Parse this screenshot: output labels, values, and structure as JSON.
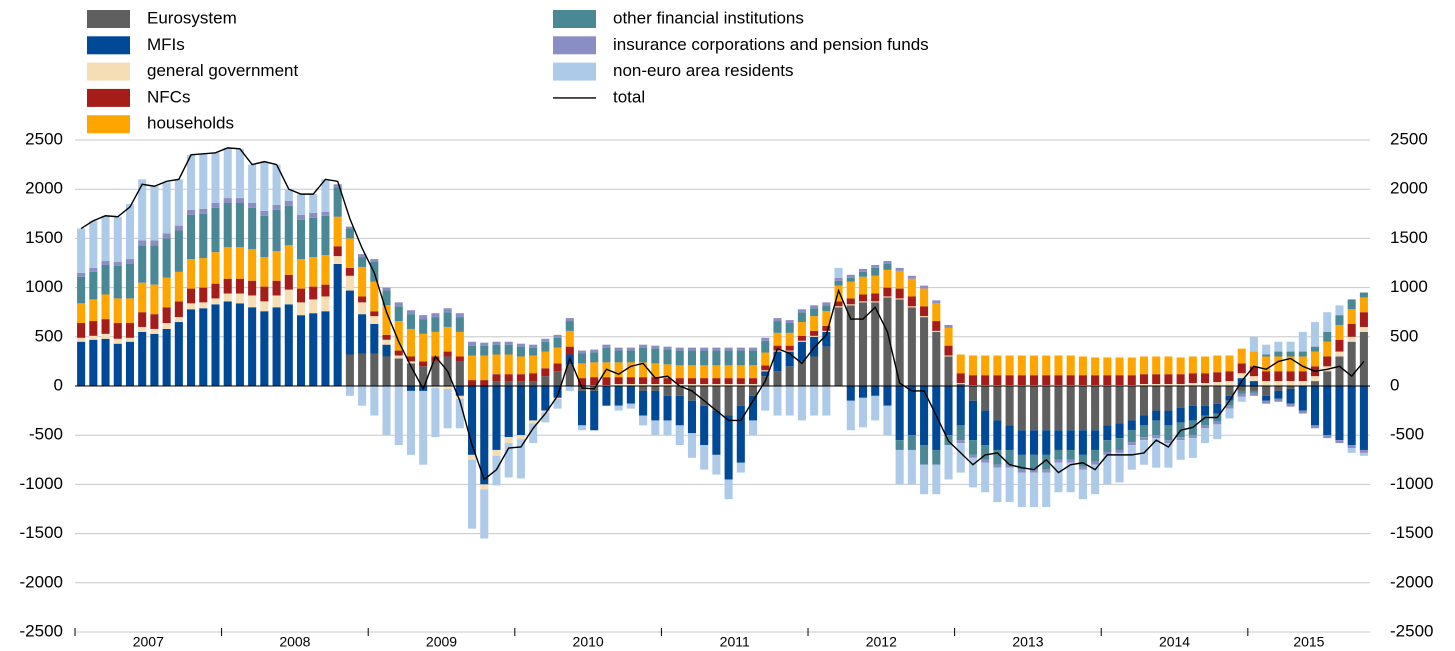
{
  "chart_data": {
    "type": "bar",
    "stacked": true,
    "legend": "top-left",
    "grid": true,
    "categories": [
      "2007",
      null,
      null,
      null,
      null,
      null,
      null,
      null,
      null,
      null,
      null,
      null,
      "2008",
      null,
      null,
      null,
      null,
      null,
      null,
      null,
      null,
      null,
      null,
      null,
      "2009",
      null,
      null,
      null,
      null,
      null,
      null,
      null,
      null,
      null,
      null,
      null,
      "2010",
      null,
      null,
      null,
      null,
      null,
      null,
      null,
      null,
      null,
      null,
      null,
      "2011",
      null,
      null,
      null,
      null,
      null,
      null,
      null,
      null,
      null,
      null,
      null,
      "2012",
      null,
      null,
      null,
      null,
      null,
      null,
      null,
      null,
      null,
      null,
      null,
      "2013",
      null,
      null,
      null,
      null,
      null,
      null,
      null,
      null,
      null,
      null,
      null,
      "2014",
      null,
      null,
      null,
      null,
      null,
      null,
      null,
      null,
      null,
      null,
      null,
      "2015",
      null,
      null,
      null,
      null,
      null,
      null,
      null,
      null,
      null
    ],
    "ylim": [
      -2500,
      2500
    ],
    "yticks": [
      -2500,
      -2000,
      -1500,
      -1000,
      -500,
      0,
      500,
      1000,
      1500,
      2000,
      2500
    ],
    "series": [
      {
        "name": "Eurosystem",
        "color": "#5f5f5f",
        "values": [
          0,
          0,
          0,
          0,
          0,
          0,
          0,
          0,
          0,
          0,
          0,
          0,
          0,
          0,
          0,
          0,
          0,
          0,
          0,
          0,
          0,
          0,
          320,
          330,
          330,
          300,
          280,
          230,
          200,
          250,
          300,
          250,
          0,
          0,
          50,
          50,
          50,
          50,
          100,
          150,
          220,
          -50,
          -50,
          0,
          0,
          0,
          -50,
          -50,
          -100,
          -100,
          -150,
          -200,
          -250,
          -300,
          -200,
          -100,
          100,
          150,
          200,
          250,
          300,
          400,
          800,
          820,
          850,
          850,
          900,
          880,
          800,
          700,
          550,
          300,
          20,
          -150,
          -250,
          -350,
          -400,
          -450,
          -450,
          -450,
          -450,
          -450,
          -450,
          -450,
          -400,
          -380,
          -350,
          -300,
          -250,
          -250,
          -220,
          -200,
          -200,
          -180,
          -100,
          -50,
          -50,
          -100,
          -50,
          -30,
          0,
          50,
          150,
          300,
          450,
          550
        ]
      },
      {
        "name": "MFIs",
        "color": "#004996",
        "values": [
          450,
          470,
          480,
          430,
          450,
          550,
          530,
          580,
          650,
          780,
          790,
          830,
          860,
          840,
          800,
          760,
          800,
          830,
          720,
          740,
          760,
          1240,
          650,
          400,
          300,
          120,
          0,
          -50,
          -50,
          0,
          0,
          -100,
          -700,
          -1000,
          -650,
          -520,
          -500,
          -350,
          -250,
          -120,
          100,
          -350,
          -400,
          -200,
          -200,
          -180,
          -250,
          -300,
          -250,
          -300,
          -330,
          -400,
          -450,
          -650,
          -580,
          -250,
          50,
          200,
          150,
          200,
          200,
          150,
          0,
          -150,
          -120,
          -100,
          -200,
          -550,
          -500,
          -600,
          -650,
          -500,
          -400,
          -400,
          -350,
          -300,
          -250,
          -250,
          -250,
          -250,
          -200,
          -200,
          -250,
          -200,
          -150,
          -150,
          -100,
          -100,
          -100,
          -150,
          -150,
          -150,
          -100,
          -100,
          -50,
          80,
          50,
          -50,
          -80,
          -150,
          -250,
          -400,
          -500,
          -550,
          -600,
          -650
        ]
      },
      {
        "name": "general government",
        "color": "#f5ddb6",
        "values": [
          40,
          40,
          50,
          50,
          40,
          50,
          50,
          60,
          50,
          60,
          60,
          60,
          80,
          100,
          120,
          100,
          120,
          150,
          130,
          140,
          150,
          80,
          150,
          120,
          80,
          50,
          30,
          20,
          0,
          -20,
          -30,
          -30,
          -50,
          -50,
          -60,
          -60,
          -40,
          -30,
          -20,
          -10,
          0,
          0,
          10,
          10,
          20,
          20,
          20,
          20,
          20,
          20,
          20,
          20,
          20,
          20,
          20,
          20,
          10,
          10,
          10,
          10,
          10,
          10,
          10,
          10,
          10,
          10,
          10,
          10,
          10,
          10,
          10,
          10,
          10,
          10,
          10,
          10,
          10,
          10,
          10,
          10,
          10,
          10,
          10,
          10,
          10,
          10,
          10,
          20,
          20,
          20,
          20,
          30,
          30,
          40,
          50,
          50,
          50,
          50,
          50,
          50,
          50,
          50,
          50,
          50,
          50,
          50
        ]
      },
      {
        "name": "NFCs",
        "color": "#a51c18",
        "values": [
          150,
          150,
          150,
          160,
          150,
          150,
          150,
          160,
          160,
          150,
          150,
          150,
          150,
          150,
          150,
          150,
          150,
          150,
          140,
          130,
          120,
          100,
          80,
          60,
          50,
          50,
          50,
          50,
          50,
          50,
          50,
          50,
          60,
          60,
          70,
          70,
          70,
          80,
          80,
          80,
          80,
          80,
          80,
          80,
          70,
          70,
          70,
          70,
          60,
          60,
          60,
          60,
          60,
          60,
          60,
          60,
          50,
          50,
          50,
          50,
          50,
          50,
          50,
          60,
          70,
          80,
          90,
          100,
          100,
          100,
          100,
          100,
          100,
          100,
          100,
          100,
          100,
          100,
          100,
          100,
          100,
          100,
          100,
          100,
          100,
          100,
          100,
          100,
          100,
          100,
          100,
          100,
          100,
          100,
          100,
          100,
          100,
          100,
          100,
          100,
          100,
          100,
          100,
          120,
          130,
          150
        ]
      },
      {
        "name": "households",
        "color": "#ffa500",
        "values": [
          200,
          220,
          250,
          250,
          250,
          300,
          300,
          300,
          300,
          300,
          300,
          320,
          320,
          320,
          320,
          300,
          300,
          300,
          300,
          300,
          300,
          300,
          300,
          300,
          300,
          300,
          300,
          280,
          280,
          250,
          250,
          250,
          250,
          250,
          200,
          200,
          180,
          180,
          170,
          160,
          160,
          150,
          150,
          150,
          150,
          150,
          150,
          140,
          140,
          130,
          130,
          130,
          130,
          130,
          130,
          130,
          130,
          130,
          130,
          140,
          150,
          150,
          160,
          170,
          180,
          180,
          180,
          180,
          180,
          180,
          180,
          180,
          190,
          200,
          200,
          200,
          200,
          200,
          200,
          200,
          200,
          200,
          190,
          180,
          180,
          180,
          180,
          180,
          180,
          180,
          170,
          170,
          170,
          170,
          160,
          150,
          150,
          150,
          150,
          150,
          150,
          150,
          150,
          150,
          150,
          150
        ]
      },
      {
        "name": "other financial institutions",
        "color": "#4a8896",
        "values": [
          270,
          280,
          300,
          330,
          350,
          380,
          400,
          400,
          420,
          450,
          450,
          450,
          450,
          450,
          420,
          420,
          420,
          400,
          400,
          400,
          400,
          300,
          100,
          100,
          200,
          150,
          150,
          150,
          150,
          150,
          150,
          150,
          100,
          100,
          100,
          100,
          100,
          80,
          100,
          100,
          100,
          100,
          100,
          150,
          120,
          120,
          150,
          150,
          150,
          150,
          150,
          150,
          150,
          150,
          150,
          150,
          120,
          120,
          100,
          100,
          80,
          60,
          50,
          40,
          50,
          80,
          60,
          -100,
          -150,
          -200,
          -150,
          -100,
          -150,
          -150,
          -150,
          -150,
          -150,
          -150,
          -150,
          -150,
          -100,
          -100,
          -120,
          -120,
          -120,
          -120,
          -120,
          -120,
          -150,
          -150,
          -150,
          -150,
          -100,
          -80,
          -50,
          -30,
          -20,
          20,
          50,
          50,
          50,
          50,
          100,
          100,
          100,
          50
        ]
      },
      {
        "name": "insurance corporations and pension funds",
        "color": "#8a8ec4",
        "values": [
          40,
          40,
          40,
          40,
          50,
          50,
          50,
          50,
          50,
          50,
          50,
          50,
          50,
          50,
          50,
          50,
          50,
          50,
          50,
          50,
          40,
          30,
          20,
          30,
          30,
          30,
          40,
          40,
          40,
          40,
          40,
          40,
          40,
          30,
          30,
          30,
          30,
          30,
          30,
          30,
          30,
          30,
          30,
          30,
          30,
          30,
          30,
          30,
          30,
          30,
          30,
          30,
          30,
          30,
          30,
          30,
          30,
          30,
          30,
          30,
          30,
          30,
          30,
          30,
          30,
          30,
          30,
          30,
          30,
          30,
          30,
          30,
          -30,
          -30,
          -30,
          -30,
          -30,
          -30,
          -30,
          -30,
          -30,
          -30,
          -30,
          -30,
          -30,
          -30,
          -30,
          -30,
          -30,
          -30,
          -30,
          -30,
          -30,
          -30,
          -30,
          -30,
          -30,
          -30,
          -30,
          -30,
          -30,
          -30,
          -30,
          -30,
          -30,
          -30
        ]
      },
      {
        "name": "non-euro area residents",
        "color": "#aecae9",
        "values": [
          450,
          480,
          460,
          460,
          560,
          620,
          550,
          520,
          470,
          560,
          560,
          510,
          510,
          500,
          390,
          500,
          410,
          120,
          210,
          190,
          330,
          0,
          -100,
          -200,
          -300,
          -500,
          -600,
          -650,
          -750,
          -500,
          -400,
          -300,
          -700,
          -500,
          -300,
          -350,
          -400,
          -200,
          -100,
          -100,
          -50,
          -50,
          0,
          0,
          -50,
          -50,
          -100,
          -150,
          -150,
          -200,
          -250,
          -250,
          -200,
          -200,
          -100,
          -150,
          -250,
          -300,
          -300,
          -350,
          -300,
          -300,
          100,
          -300,
          -300,
          -250,
          -300,
          -350,
          -350,
          -300,
          -300,
          -350,
          -300,
          -300,
          -300,
          -350,
          -350,
          -350,
          -350,
          -350,
          -300,
          -300,
          -300,
          -300,
          -300,
          -300,
          -250,
          -250,
          -300,
          -250,
          -200,
          -200,
          -150,
          -150,
          -100,
          -50,
          150,
          100,
          100,
          100,
          200,
          250,
          200,
          100,
          -50,
          -30
        ]
      },
      {
        "name": "total",
        "color": "#000000",
        "type": "line",
        "values": [
          1600,
          1680,
          1730,
          1720,
          1820,
          2050,
          2030,
          2080,
          2100,
          2350,
          2360,
          2370,
          2420,
          2410,
          2250,
          2280,
          2250,
          2000,
          1950,
          1950,
          2100,
          2080,
          1700,
          1400,
          1150,
          750,
          450,
          200,
          -30,
          300,
          150,
          -150,
          -600,
          -950,
          -850,
          -630,
          -620,
          -430,
          -280,
          -100,
          280,
          -20,
          -30,
          170,
          120,
          200,
          230,
          80,
          100,
          0,
          -50,
          -150,
          -250,
          -350,
          -350,
          -150,
          50,
          380,
          330,
          230,
          390,
          520,
          970,
          680,
          680,
          800,
          550,
          30,
          -50,
          -50,
          -300,
          -560,
          -680,
          -800,
          -700,
          -680,
          -800,
          -830,
          -850,
          -750,
          -880,
          -800,
          -780,
          -850,
          -700,
          -700,
          -700,
          -680,
          -550,
          -620,
          -450,
          -420,
          -320,
          -320,
          -150,
          50,
          200,
          170,
          250,
          280,
          200,
          150,
          170,
          200,
          100,
          250
        ]
      }
    ]
  }
}
